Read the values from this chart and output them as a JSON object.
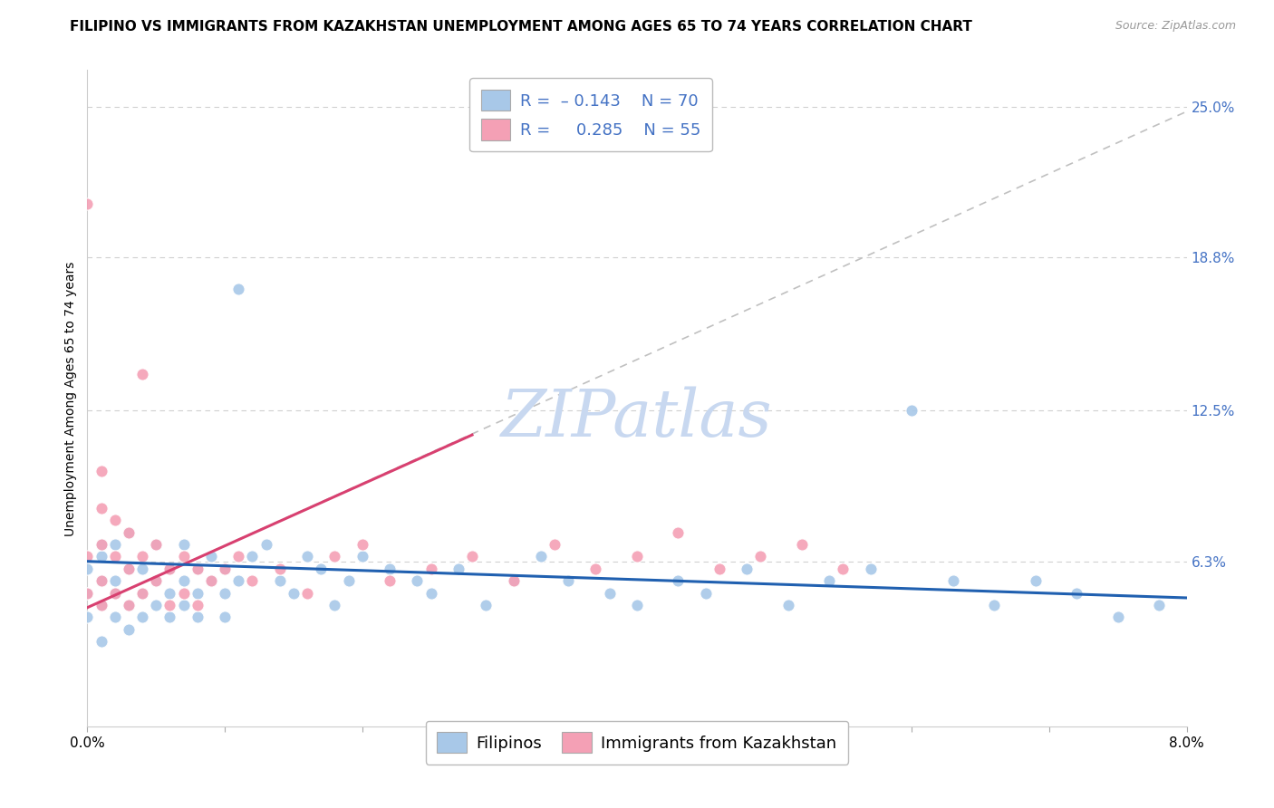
{
  "title": "FILIPINO VS IMMIGRANTS FROM KAZAKHSTAN UNEMPLOYMENT AMONG AGES 65 TO 74 YEARS CORRELATION CHART",
  "source": "Source: ZipAtlas.com",
  "ylabel": "Unemployment Among Ages 65 to 74 years",
  "xlim": [
    0.0,
    0.08
  ],
  "ylim": [
    -0.005,
    0.265
  ],
  "ytick_positions": [
    0.063,
    0.125,
    0.188,
    0.25
  ],
  "ytick_labels": [
    "6.3%",
    "12.5%",
    "18.8%",
    "25.0%"
  ],
  "color_blue": "#A8C8E8",
  "color_pink": "#F4A0B5",
  "trendline_blue": "#2060B0",
  "trendline_pink": "#D84070",
  "trendline_gray": "#C0C0C0",
  "watermark": "ZIPatlas",
  "watermark_color": "#C8D8F0",
  "title_fontsize": 11,
  "axis_label_fontsize": 10,
  "tick_fontsize": 11,
  "legend_fontsize": 13,
  "blue_x": [
    0.0,
    0.0,
    0.0,
    0.001,
    0.001,
    0.001,
    0.001,
    0.001,
    0.002,
    0.002,
    0.002,
    0.002,
    0.003,
    0.003,
    0.003,
    0.003,
    0.004,
    0.004,
    0.004,
    0.005,
    0.005,
    0.005,
    0.006,
    0.006,
    0.006,
    0.007,
    0.007,
    0.007,
    0.008,
    0.008,
    0.008,
    0.009,
    0.009,
    0.01,
    0.01,
    0.01,
    0.011,
    0.011,
    0.012,
    0.013,
    0.014,
    0.015,
    0.016,
    0.017,
    0.018,
    0.019,
    0.02,
    0.022,
    0.024,
    0.025,
    0.027,
    0.029,
    0.031,
    0.033,
    0.035,
    0.038,
    0.04,
    0.043,
    0.045,
    0.048,
    0.051,
    0.054,
    0.057,
    0.06,
    0.063,
    0.066,
    0.069,
    0.072,
    0.075,
    0.078
  ],
  "blue_y": [
    0.06,
    0.05,
    0.04,
    0.07,
    0.055,
    0.045,
    0.03,
    0.065,
    0.05,
    0.04,
    0.07,
    0.055,
    0.06,
    0.045,
    0.035,
    0.075,
    0.05,
    0.04,
    0.06,
    0.055,
    0.045,
    0.07,
    0.05,
    0.04,
    0.06,
    0.055,
    0.045,
    0.07,
    0.05,
    0.04,
    0.06,
    0.055,
    0.065,
    0.05,
    0.06,
    0.04,
    0.175,
    0.055,
    0.065,
    0.07,
    0.055,
    0.05,
    0.065,
    0.06,
    0.045,
    0.055,
    0.065,
    0.06,
    0.055,
    0.05,
    0.06,
    0.045,
    0.055,
    0.065,
    0.055,
    0.05,
    0.045,
    0.055,
    0.05,
    0.06,
    0.045,
    0.055,
    0.06,
    0.125,
    0.055,
    0.045,
    0.055,
    0.05,
    0.04,
    0.045
  ],
  "pink_x": [
    0.0,
    0.0,
    0.0,
    0.001,
    0.001,
    0.001,
    0.001,
    0.001,
    0.002,
    0.002,
    0.002,
    0.003,
    0.003,
    0.003,
    0.004,
    0.004,
    0.004,
    0.005,
    0.005,
    0.006,
    0.006,
    0.007,
    0.007,
    0.008,
    0.008,
    0.009,
    0.01,
    0.011,
    0.012,
    0.014,
    0.016,
    0.018,
    0.02,
    0.022,
    0.025,
    0.028,
    0.031,
    0.034,
    0.037,
    0.04,
    0.043,
    0.046,
    0.049,
    0.052,
    0.055
  ],
  "pink_y": [
    0.05,
    0.065,
    0.21,
    0.045,
    0.055,
    0.07,
    0.085,
    0.1,
    0.05,
    0.065,
    0.08,
    0.045,
    0.06,
    0.075,
    0.05,
    0.065,
    0.14,
    0.055,
    0.07,
    0.045,
    0.06,
    0.05,
    0.065,
    0.045,
    0.06,
    0.055,
    0.06,
    0.065,
    0.055,
    0.06,
    0.05,
    0.065,
    0.07,
    0.055,
    0.06,
    0.065,
    0.055,
    0.07,
    0.06,
    0.065,
    0.075,
    0.06,
    0.065,
    0.07,
    0.06
  ],
  "blue_trend_x0": 0.0,
  "blue_trend_y0": 0.063,
  "blue_trend_x1": 0.08,
  "blue_trend_y1": 0.048,
  "pink_trend_x0": 0.0,
  "pink_trend_y0": 0.044,
  "pink_trend_x1": 0.028,
  "pink_trend_y1": 0.115,
  "gray_trend_x0": 0.0,
  "gray_trend_y0": 0.044,
  "gray_trend_x1": 0.08,
  "gray_trend_y1": 0.248
}
